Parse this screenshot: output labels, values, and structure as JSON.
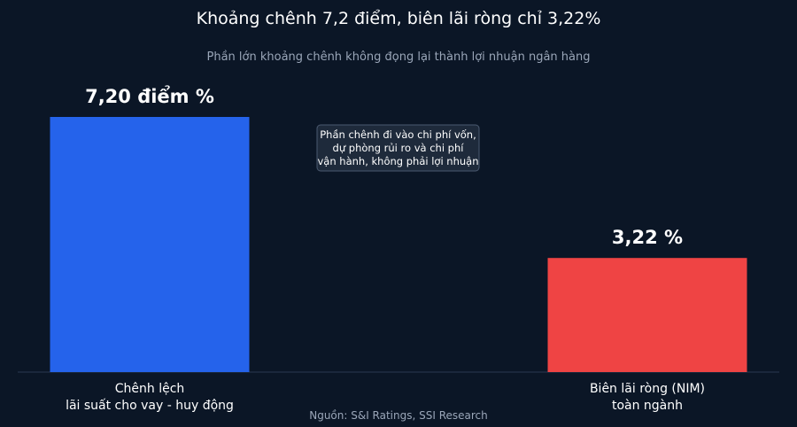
{
  "chart_data": {
    "type": "bar",
    "title": "Khoảng chênh 7,2 điểm, biên lãi ròng chỉ 3,22%",
    "subtitle": "Phần lớn khoảng chênh không đọng lại thành lợi nhuận ngân hàng",
    "categories": [
      [
        "Chênh lệch",
        "lãi suất cho vay - huy động"
      ],
      [
        "Biên lãi ròng (NIM)",
        "toàn ngành"
      ]
    ],
    "values": [
      7.2,
      3.22
    ],
    "value_labels": [
      "7,20 điểm %",
      "3,22 %"
    ],
    "colors": [
      "#2563eb",
      "#ef4444"
    ],
    "ylim": [
      0,
      8
    ],
    "grid": false,
    "legend": "none",
    "annotation": [
      "Phần chênh đi vào chi phí vốn,",
      "dự phòng rủi ro và chi phí",
      "vận hành, không phải lợi nhuận"
    ],
    "source": "Nguồn: S&I Ratings, SSI Research"
  },
  "colors": {
    "background": "#0b1626",
    "baseline": "#2a3850",
    "note_fill": "#1e2a3b",
    "note_stroke": "#4b5a70"
  }
}
